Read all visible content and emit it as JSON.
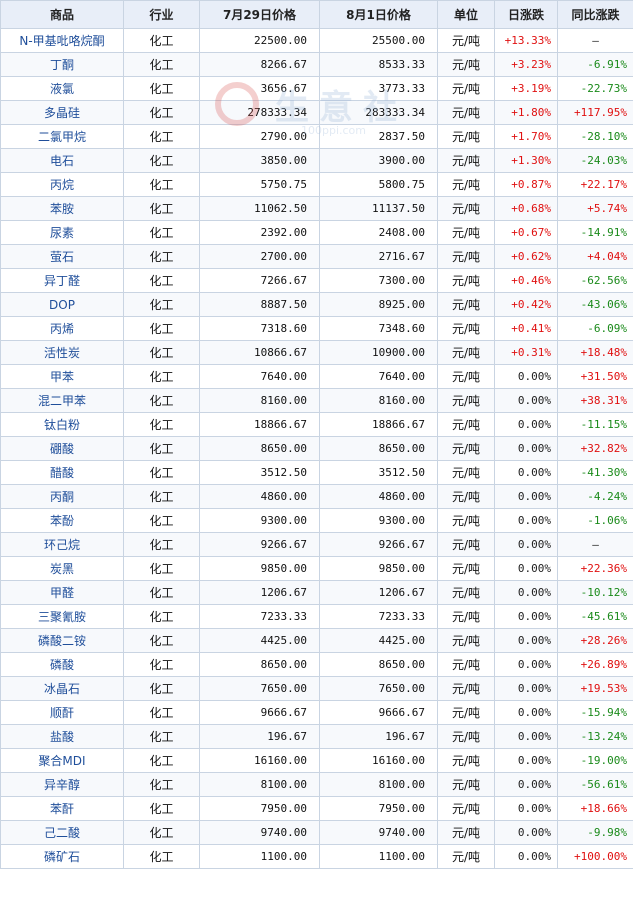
{
  "headers": [
    "商品",
    "行业",
    "7月29日价格",
    "8月1日价格",
    "单位",
    "日涨跌",
    "同比涨跌"
  ],
  "watermark": {
    "text": "生意社",
    "url": "100ppi.com"
  },
  "rows": [
    {
      "name": "N-甲基吡咯烷酮",
      "industry": "化工",
      "p1": "22500.00",
      "p2": "25500.00",
      "unit": "元/吨",
      "day": "+13.33%",
      "yoy": "—"
    },
    {
      "name": "丁酮",
      "industry": "化工",
      "p1": "8266.67",
      "p2": "8533.33",
      "unit": "元/吨",
      "day": "+3.23%",
      "yoy": "-6.91%"
    },
    {
      "name": "液氯",
      "industry": "化工",
      "p1": "3656.67",
      "p2": "3773.33",
      "unit": "元/吨",
      "day": "+3.19%",
      "yoy": "-22.73%"
    },
    {
      "name": "多晶硅",
      "industry": "化工",
      "p1": "278333.34",
      "p2": "283333.34",
      "unit": "元/吨",
      "day": "+1.80%",
      "yoy": "+117.95%"
    },
    {
      "name": "二氯甲烷",
      "industry": "化工",
      "p1": "2790.00",
      "p2": "2837.50",
      "unit": "元/吨",
      "day": "+1.70%",
      "yoy": "-28.10%"
    },
    {
      "name": "电石",
      "industry": "化工",
      "p1": "3850.00",
      "p2": "3900.00",
      "unit": "元/吨",
      "day": "+1.30%",
      "yoy": "-24.03%"
    },
    {
      "name": "丙烷",
      "industry": "化工",
      "p1": "5750.75",
      "p2": "5800.75",
      "unit": "元/吨",
      "day": "+0.87%",
      "yoy": "+22.17%"
    },
    {
      "name": "苯胺",
      "industry": "化工",
      "p1": "11062.50",
      "p2": "11137.50",
      "unit": "元/吨",
      "day": "+0.68%",
      "yoy": "+5.74%"
    },
    {
      "name": "尿素",
      "industry": "化工",
      "p1": "2392.00",
      "p2": "2408.00",
      "unit": "元/吨",
      "day": "+0.67%",
      "yoy": "-14.91%"
    },
    {
      "name": "萤石",
      "industry": "化工",
      "p1": "2700.00",
      "p2": "2716.67",
      "unit": "元/吨",
      "day": "+0.62%",
      "yoy": "+4.04%"
    },
    {
      "name": "异丁醛",
      "industry": "化工",
      "p1": "7266.67",
      "p2": "7300.00",
      "unit": "元/吨",
      "day": "+0.46%",
      "yoy": "-62.56%"
    },
    {
      "name": "DOP",
      "industry": "化工",
      "p1": "8887.50",
      "p2": "8925.00",
      "unit": "元/吨",
      "day": "+0.42%",
      "yoy": "-43.06%"
    },
    {
      "name": "丙烯",
      "industry": "化工",
      "p1": "7318.60",
      "p2": "7348.60",
      "unit": "元/吨",
      "day": "+0.41%",
      "yoy": "-6.09%"
    },
    {
      "name": "活性炭",
      "industry": "化工",
      "p1": "10866.67",
      "p2": "10900.00",
      "unit": "元/吨",
      "day": "+0.31%",
      "yoy": "+18.48%"
    },
    {
      "name": "甲苯",
      "industry": "化工",
      "p1": "7640.00",
      "p2": "7640.00",
      "unit": "元/吨",
      "day": "0.00%",
      "yoy": "+31.50%"
    },
    {
      "name": "混二甲苯",
      "industry": "化工",
      "p1": "8160.00",
      "p2": "8160.00",
      "unit": "元/吨",
      "day": "0.00%",
      "yoy": "+38.31%"
    },
    {
      "name": "钛白粉",
      "industry": "化工",
      "p1": "18866.67",
      "p2": "18866.67",
      "unit": "元/吨",
      "day": "0.00%",
      "yoy": "-11.15%"
    },
    {
      "name": "硼酸",
      "industry": "化工",
      "p1": "8650.00",
      "p2": "8650.00",
      "unit": "元/吨",
      "day": "0.00%",
      "yoy": "+32.82%"
    },
    {
      "name": "醋酸",
      "industry": "化工",
      "p1": "3512.50",
      "p2": "3512.50",
      "unit": "元/吨",
      "day": "0.00%",
      "yoy": "-41.30%"
    },
    {
      "name": "丙酮",
      "industry": "化工",
      "p1": "4860.00",
      "p2": "4860.00",
      "unit": "元/吨",
      "day": "0.00%",
      "yoy": "-4.24%"
    },
    {
      "name": "苯酚",
      "industry": "化工",
      "p1": "9300.00",
      "p2": "9300.00",
      "unit": "元/吨",
      "day": "0.00%",
      "yoy": "-1.06%"
    },
    {
      "name": "环己烷",
      "industry": "化工",
      "p1": "9266.67",
      "p2": "9266.67",
      "unit": "元/吨",
      "day": "0.00%",
      "yoy": "—"
    },
    {
      "name": "炭黑",
      "industry": "化工",
      "p1": "9850.00",
      "p2": "9850.00",
      "unit": "元/吨",
      "day": "0.00%",
      "yoy": "+22.36%"
    },
    {
      "name": "甲醛",
      "industry": "化工",
      "p1": "1206.67",
      "p2": "1206.67",
      "unit": "元/吨",
      "day": "0.00%",
      "yoy": "-10.12%"
    },
    {
      "name": "三聚氰胺",
      "industry": "化工",
      "p1": "7233.33",
      "p2": "7233.33",
      "unit": "元/吨",
      "day": "0.00%",
      "yoy": "-45.61%"
    },
    {
      "name": "磷酸二铵",
      "industry": "化工",
      "p1": "4425.00",
      "p2": "4425.00",
      "unit": "元/吨",
      "day": "0.00%",
      "yoy": "+28.26%"
    },
    {
      "name": "磷酸",
      "industry": "化工",
      "p1": "8650.00",
      "p2": "8650.00",
      "unit": "元/吨",
      "day": "0.00%",
      "yoy": "+26.89%"
    },
    {
      "name": "冰晶石",
      "industry": "化工",
      "p1": "7650.00",
      "p2": "7650.00",
      "unit": "元/吨",
      "day": "0.00%",
      "yoy": "+19.53%"
    },
    {
      "name": "顺酐",
      "industry": "化工",
      "p1": "9666.67",
      "p2": "9666.67",
      "unit": "元/吨",
      "day": "0.00%",
      "yoy": "-15.94%"
    },
    {
      "name": "盐酸",
      "industry": "化工",
      "p1": "196.67",
      "p2": "196.67",
      "unit": "元/吨",
      "day": "0.00%",
      "yoy": "-13.24%"
    },
    {
      "name": "聚合MDI",
      "industry": "化工",
      "p1": "16160.00",
      "p2": "16160.00",
      "unit": "元/吨",
      "day": "0.00%",
      "yoy": "-19.00%"
    },
    {
      "name": "异辛醇",
      "industry": "化工",
      "p1": "8100.00",
      "p2": "8100.00",
      "unit": "元/吨",
      "day": "0.00%",
      "yoy": "-56.61%"
    },
    {
      "name": "苯酐",
      "industry": "化工",
      "p1": "7950.00",
      "p2": "7950.00",
      "unit": "元/吨",
      "day": "0.00%",
      "yoy": "+18.66%"
    },
    {
      "name": "己二酸",
      "industry": "化工",
      "p1": "9740.00",
      "p2": "9740.00",
      "unit": "元/吨",
      "day": "0.00%",
      "yoy": "-9.98%"
    },
    {
      "name": "磷矿石",
      "industry": "化工",
      "p1": "1100.00",
      "p2": "1100.00",
      "unit": "元/吨",
      "day": "0.00%",
      "yoy": "+100.00%"
    }
  ],
  "colors": {
    "up": "#e01010",
    "down": "#1a8a1a",
    "link": "#1f4e9a",
    "header_bg": "#e8eef8",
    "border": "#c9d4e2"
  }
}
